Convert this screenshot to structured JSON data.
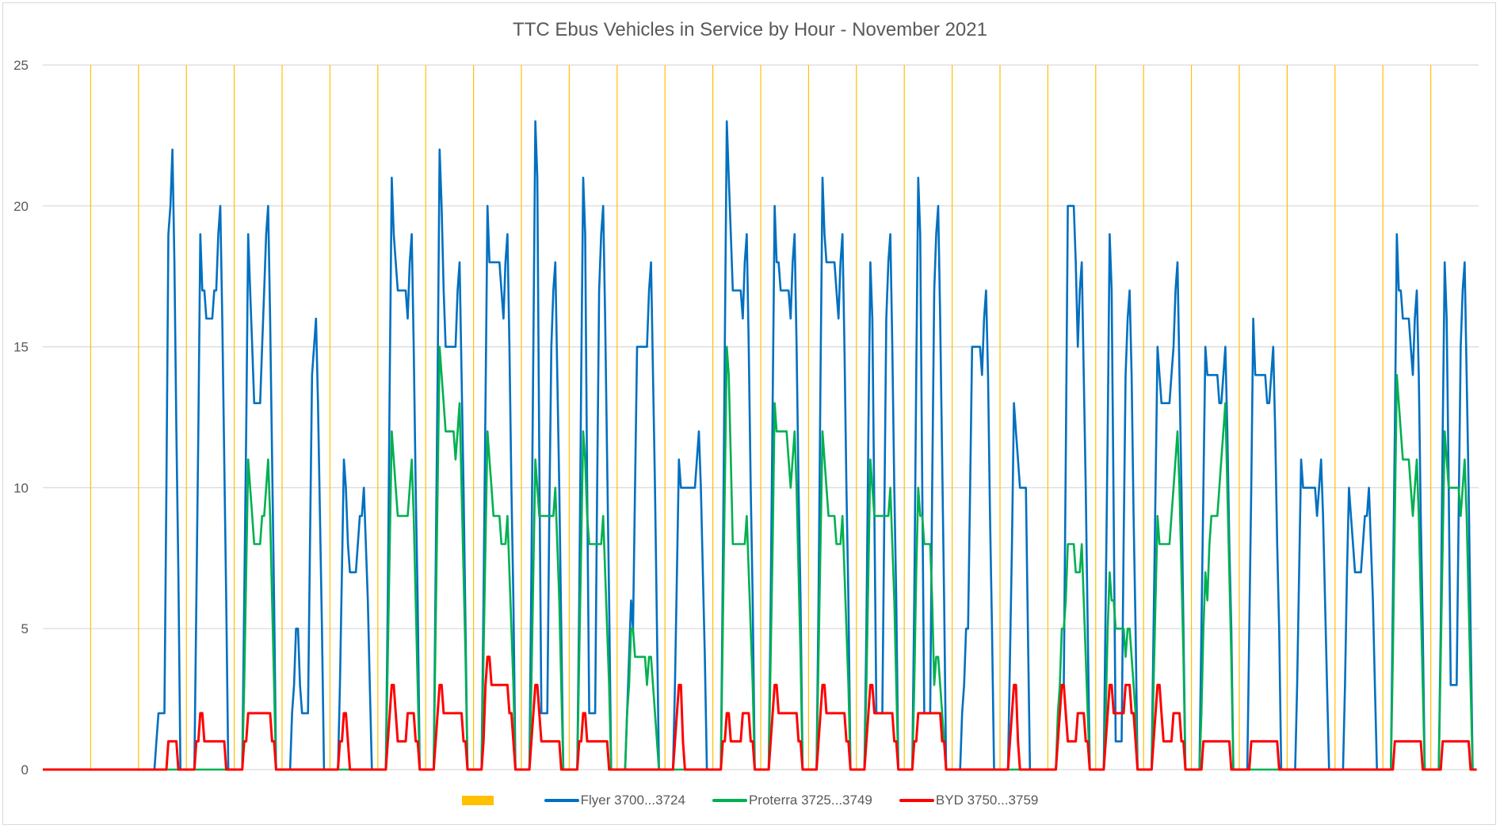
{
  "chart_data": {
    "type": "line",
    "title": "TTC Ebus Vehicles in Service by Hour - November 2021",
    "xlabel": "",
    "ylabel": "",
    "ylim": [
      0,
      25
    ],
    "yticks": [
      "0",
      "5",
      "10",
      "15",
      "20",
      "25"
    ],
    "grid": true,
    "days": 30,
    "hours_per_day": 24,
    "legend_position": "bottom",
    "profile_note": "per day: [am peak, midday, pm peak]",
    "legend": [
      {
        "name": "",
        "color": "#FFC000",
        "kind": "day-marker"
      },
      {
        "name": "Flyer 3700...3724",
        "color": "#0070C0"
      },
      {
        "name": "Proterra 3725...3749",
        "color": "#00B050"
      },
      {
        "name": "BYD 3750...3759",
        "color": "#FF0000"
      }
    ],
    "series": [
      {
        "name": "Flyer 3700...3724",
        "color": "#0070C0",
        "daily": [
          [
            0,
            0,
            0
          ],
          [
            0,
            0,
            0
          ],
          [
            0,
            2,
            22
          ],
          [
            19,
            16,
            20
          ],
          [
            19,
            13,
            20
          ],
          [
            5,
            2,
            16
          ],
          [
            11,
            7,
            10
          ],
          [
            21,
            17,
            19
          ],
          [
            22,
            15,
            18
          ],
          [
            20,
            18,
            19
          ],
          [
            23,
            2,
            18
          ],
          [
            21,
            2,
            20
          ],
          [
            6,
            15,
            18
          ],
          [
            11,
            10,
            12
          ],
          [
            23,
            17,
            19
          ],
          [
            20,
            17,
            19
          ],
          [
            21,
            18,
            19
          ],
          [
            18,
            2,
            19
          ],
          [
            21,
            2,
            20
          ],
          [
            5,
            15,
            17
          ],
          [
            13,
            10,
            0
          ],
          [
            3,
            20,
            18
          ],
          [
            19,
            1,
            17
          ],
          [
            15,
            13,
            18
          ],
          [
            15,
            14,
            15
          ],
          [
            16,
            14,
            15
          ],
          [
            11,
            10,
            11
          ],
          [
            10,
            7,
            10
          ],
          [
            19,
            16,
            17
          ],
          [
            18,
            3,
            18
          ]
        ]
      },
      {
        "name": "Proterra 3725...3749",
        "color": "#00B050",
        "daily": [
          [
            0,
            0,
            0
          ],
          [
            0,
            0,
            0
          ],
          [
            0,
            0,
            0
          ],
          [
            0,
            0,
            0
          ],
          [
            11,
            8,
            11
          ],
          [
            0,
            0,
            0
          ],
          [
            0,
            0,
            0
          ],
          [
            12,
            9,
            11
          ],
          [
            15,
            12,
            13
          ],
          [
            12,
            9,
            9
          ],
          [
            11,
            9,
            10
          ],
          [
            12,
            8,
            9
          ],
          [
            5,
            4,
            4
          ],
          [
            0,
            0,
            0
          ],
          [
            15,
            8,
            9
          ],
          [
            13,
            12,
            12
          ],
          [
            12,
            9,
            9
          ],
          [
            11,
            9,
            10
          ],
          [
            10,
            8,
            4
          ],
          [
            0,
            0,
            0
          ],
          [
            0,
            0,
            0
          ],
          [
            5,
            8,
            8
          ],
          [
            7,
            5,
            5
          ],
          [
            9,
            8,
            12
          ],
          [
            7,
            9,
            13
          ],
          [
            0,
            0,
            0
          ],
          [
            0,
            0,
            0
          ],
          [
            0,
            0,
            0
          ],
          [
            14,
            11,
            11
          ],
          [
            12,
            10,
            11
          ]
        ]
      },
      {
        "name": "BYD 3750...3759",
        "color": "#FF0000",
        "daily": [
          [
            0,
            0,
            0
          ],
          [
            0,
            0,
            0
          ],
          [
            0,
            0,
            1
          ],
          [
            2,
            1,
            1
          ],
          [
            2,
            2,
            2
          ],
          [
            0,
            0,
            0
          ],
          [
            2,
            0,
            0
          ],
          [
            3,
            1,
            2
          ],
          [
            3,
            2,
            2
          ],
          [
            4,
            3,
            3
          ],
          [
            3,
            1,
            1
          ],
          [
            2,
            1,
            1
          ],
          [
            0,
            0,
            0
          ],
          [
            3,
            0,
            0
          ],
          [
            2,
            1,
            2
          ],
          [
            3,
            2,
            2
          ],
          [
            3,
            2,
            2
          ],
          [
            3,
            2,
            2
          ],
          [
            2,
            2,
            2
          ],
          [
            0,
            0,
            0
          ],
          [
            3,
            0,
            0
          ],
          [
            3,
            1,
            2
          ],
          [
            3,
            2,
            3
          ],
          [
            3,
            1,
            2
          ],
          [
            1,
            1,
            1
          ],
          [
            1,
            1,
            1
          ],
          [
            0,
            0,
            0
          ],
          [
            0,
            0,
            0
          ],
          [
            1,
            1,
            1
          ],
          [
            1,
            1,
            1
          ]
        ]
      }
    ]
  }
}
